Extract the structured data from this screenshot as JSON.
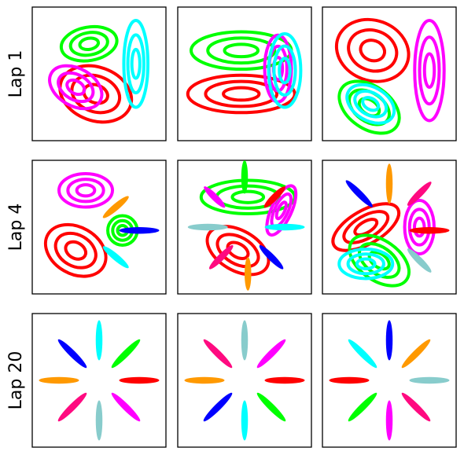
{
  "colors": {
    "red": "#ff0000",
    "green": "#00ff00",
    "magenta": "#ff00ff",
    "cyan": "#00ffff",
    "blue": "#0000ff",
    "orange": "#ff9900",
    "pink": "#ff0a80",
    "teal": "#88cccc"
  },
  "chart_data": {
    "type": "scatter",
    "layout": {
      "rows": 3,
      "cols": 3
    },
    "row_labels": [
      "Lap 1",
      "Lap 4",
      "Lap 20"
    ],
    "axes": {
      "xlim": [
        -1,
        1
      ],
      "ylim": [
        -1,
        1
      ],
      "ticks": false,
      "grid": false
    },
    "panels": [
      {
        "row": 0,
        "col": 0,
        "clusters": [
          {
            "color": "red",
            "cx": -0.05,
            "cy": -0.3,
            "rx": 0.55,
            "ry": 0.4,
            "angle": -20,
            "rings": 3
          },
          {
            "color": "magenta",
            "cx": -0.35,
            "cy": -0.2,
            "rx": 0.42,
            "ry": 0.28,
            "angle": -30,
            "rings": 3
          },
          {
            "color": "green",
            "cx": -0.15,
            "cy": 0.45,
            "rx": 0.42,
            "ry": 0.25,
            "angle": 10,
            "rings": 3
          },
          {
            "color": "cyan",
            "cx": 0.55,
            "cy": 0.15,
            "rx": 0.18,
            "ry": 0.65,
            "angle": 0,
            "rings": 3
          }
        ]
      },
      {
        "row": 0,
        "col": 1,
        "clusters": [
          {
            "color": "green",
            "cx": -0.05,
            "cy": 0.35,
            "rx": 0.75,
            "ry": 0.28,
            "angle": 0,
            "rings": 3
          },
          {
            "color": "red",
            "cx": -0.05,
            "cy": -0.3,
            "rx": 0.8,
            "ry": 0.28,
            "angle": 0,
            "rings": 3
          },
          {
            "color": "magenta",
            "cx": 0.5,
            "cy": 0.08,
            "rx": 0.2,
            "ry": 0.5,
            "angle": 0,
            "rings": 3
          },
          {
            "color": "cyan",
            "cx": 0.6,
            "cy": 0.05,
            "rx": 0.24,
            "ry": 0.55,
            "angle": 0,
            "rings": 3
          }
        ]
      },
      {
        "row": 0,
        "col": 2,
        "clusters": [
          {
            "color": "red",
            "cx": -0.25,
            "cy": 0.35,
            "rx": 0.55,
            "ry": 0.45,
            "angle": -20,
            "rings": 3
          },
          {
            "color": "magenta",
            "cx": 0.6,
            "cy": 0.05,
            "rx": 0.22,
            "ry": 0.75,
            "angle": 0,
            "rings": 3
          },
          {
            "color": "green",
            "cx": -0.3,
            "cy": -0.5,
            "rx": 0.5,
            "ry": 0.32,
            "angle": -35,
            "rings": 3
          },
          {
            "color": "cyan",
            "cx": -0.28,
            "cy": -0.45,
            "rx": 0.38,
            "ry": 0.25,
            "angle": -30,
            "rings": 3
          }
        ]
      },
      {
        "row": 1,
        "col": 0,
        "clusters": [
          {
            "color": "magenta",
            "cx": -0.2,
            "cy": 0.55,
            "rx": 0.4,
            "ry": 0.25,
            "angle": 0,
            "rings": 3
          },
          {
            "color": "red",
            "cx": -0.35,
            "cy": -0.35,
            "rx": 0.48,
            "ry": 0.35,
            "angle": -30,
            "rings": 3
          },
          {
            "color": "green",
            "cx": 0.35,
            "cy": -0.05,
            "rx": 0.22,
            "ry": 0.22,
            "angle": 0,
            "rings": 3
          },
          {
            "color": "orange",
            "cx": 0.25,
            "cy": 0.3,
            "rx": 0.25,
            "ry": 0.05,
            "angle": 40,
            "rings": 1
          },
          {
            "color": "blue",
            "cx": 0.6,
            "cy": -0.05,
            "rx": 0.3,
            "ry": 0.05,
            "angle": 0,
            "rings": 1
          },
          {
            "color": "cyan",
            "cx": 0.25,
            "cy": -0.45,
            "rx": 0.25,
            "ry": 0.05,
            "angle": -40,
            "rings": 1
          }
        ]
      },
      {
        "row": 1,
        "col": 1,
        "clusters": [
          {
            "color": "green",
            "cx": 0.05,
            "cy": 0.45,
            "rx": 0.7,
            "ry": 0.25,
            "angle": 0,
            "rings": 3
          },
          {
            "color": "red",
            "cx": -0.1,
            "cy": -0.35,
            "rx": 0.5,
            "ry": 0.3,
            "angle": -30,
            "rings": 3
          },
          {
            "color": "magenta",
            "cx": 0.55,
            "cy": 0.25,
            "rx": 0.15,
            "ry": 0.4,
            "angle": -25,
            "rings": 3
          },
          {
            "color": "green",
            "cx": 0.0,
            "cy": 0.75,
            "rx": 0.25,
            "ry": 0.05,
            "angle": 90,
            "rings": 1
          },
          {
            "color": "magenta",
            "cx": -0.45,
            "cy": 0.45,
            "rx": 0.22,
            "ry": 0.05,
            "angle": -45,
            "rings": 1
          },
          {
            "color": "red",
            "cx": 0.45,
            "cy": 0.45,
            "rx": 0.22,
            "ry": 0.05,
            "angle": 45,
            "rings": 1
          },
          {
            "color": "teal",
            "cx": -0.55,
            "cy": 0.0,
            "rx": 0.3,
            "ry": 0.05,
            "angle": 0,
            "rings": 1
          },
          {
            "color": "cyan",
            "cx": 0.6,
            "cy": 0.0,
            "rx": 0.3,
            "ry": 0.05,
            "angle": 0,
            "rings": 1
          },
          {
            "color": "pink",
            "cx": -0.35,
            "cy": -0.45,
            "rx": 0.25,
            "ry": 0.05,
            "angle": 45,
            "rings": 1
          },
          {
            "color": "blue",
            "cx": 0.4,
            "cy": -0.45,
            "rx": 0.25,
            "ry": 0.05,
            "angle": -45,
            "rings": 1
          },
          {
            "color": "orange",
            "cx": 0.05,
            "cy": -0.7,
            "rx": 0.25,
            "ry": 0.05,
            "angle": 90,
            "rings": 1
          }
        ]
      },
      {
        "row": 1,
        "col": 2,
        "clusters": [
          {
            "color": "red",
            "cx": -0.35,
            "cy": 0.0,
            "rx": 0.55,
            "ry": 0.25,
            "angle": 30,
            "rings": 3
          },
          {
            "color": "green",
            "cx": -0.15,
            "cy": -0.5,
            "rx": 0.5,
            "ry": 0.3,
            "angle": -35,
            "rings": 3
          },
          {
            "color": "cyan",
            "cx": -0.35,
            "cy": -0.55,
            "rx": 0.4,
            "ry": 0.22,
            "angle": 0,
            "rings": 3
          },
          {
            "color": "magenta",
            "cx": 0.45,
            "cy": 0.0,
            "rx": 0.22,
            "ry": 0.4,
            "angle": 0,
            "rings": 3
          },
          {
            "color": "blue",
            "cx": -0.45,
            "cy": 0.5,
            "rx": 0.28,
            "ry": 0.05,
            "angle": -45,
            "rings": 1
          },
          {
            "color": "orange",
            "cx": 0.0,
            "cy": 0.65,
            "rx": 0.3,
            "ry": 0.05,
            "angle": 90,
            "rings": 1
          },
          {
            "color": "pink",
            "cx": 0.45,
            "cy": 0.5,
            "rx": 0.25,
            "ry": 0.05,
            "angle": 45,
            "rings": 1
          },
          {
            "color": "red",
            "cx": 0.6,
            "cy": -0.05,
            "rx": 0.3,
            "ry": 0.05,
            "angle": 0,
            "rings": 1
          },
          {
            "color": "teal",
            "cx": 0.45,
            "cy": -0.5,
            "rx": 0.25,
            "ry": 0.05,
            "angle": -45,
            "rings": 1
          }
        ]
      },
      {
        "row": 2,
        "col": 0,
        "clusters": [
          {
            "color": "cyan",
            "cx": 0.0,
            "cy": 0.6,
            "rx": 0.3,
            "ry": 0.05,
            "angle": 90,
            "rings": 1
          },
          {
            "color": "green",
            "cx": 0.4,
            "cy": 0.4,
            "rx": 0.3,
            "ry": 0.05,
            "angle": 45,
            "rings": 1
          },
          {
            "color": "red",
            "cx": 0.6,
            "cy": 0.0,
            "rx": 0.3,
            "ry": 0.05,
            "angle": 0,
            "rings": 1
          },
          {
            "color": "magenta",
            "cx": 0.4,
            "cy": -0.4,
            "rx": 0.3,
            "ry": 0.05,
            "angle": -45,
            "rings": 1
          },
          {
            "color": "teal",
            "cx": 0.0,
            "cy": -0.6,
            "rx": 0.3,
            "ry": 0.05,
            "angle": 90,
            "rings": 1
          },
          {
            "color": "pink",
            "cx": -0.4,
            "cy": -0.4,
            "rx": 0.3,
            "ry": 0.05,
            "angle": 45,
            "rings": 1
          },
          {
            "color": "orange",
            "cx": -0.6,
            "cy": 0.0,
            "rx": 0.3,
            "ry": 0.05,
            "angle": 0,
            "rings": 1
          },
          {
            "color": "blue",
            "cx": -0.4,
            "cy": 0.4,
            "rx": 0.3,
            "ry": 0.05,
            "angle": -45,
            "rings": 1
          }
        ]
      },
      {
        "row": 2,
        "col": 1,
        "clusters": [
          {
            "color": "teal",
            "cx": 0.0,
            "cy": 0.6,
            "rx": 0.3,
            "ry": 0.05,
            "angle": 90,
            "rings": 1
          },
          {
            "color": "magenta",
            "cx": 0.4,
            "cy": 0.4,
            "rx": 0.3,
            "ry": 0.05,
            "angle": 45,
            "rings": 1
          },
          {
            "color": "red",
            "cx": 0.6,
            "cy": 0.0,
            "rx": 0.3,
            "ry": 0.05,
            "angle": 0,
            "rings": 1
          },
          {
            "color": "green",
            "cx": 0.4,
            "cy": -0.4,
            "rx": 0.3,
            "ry": 0.05,
            "angle": -45,
            "rings": 1
          },
          {
            "color": "cyan",
            "cx": 0.0,
            "cy": -0.6,
            "rx": 0.3,
            "ry": 0.05,
            "angle": 90,
            "rings": 1
          },
          {
            "color": "blue",
            "cx": -0.4,
            "cy": -0.4,
            "rx": 0.3,
            "ry": 0.05,
            "angle": 45,
            "rings": 1
          },
          {
            "color": "orange",
            "cx": -0.6,
            "cy": 0.0,
            "rx": 0.3,
            "ry": 0.05,
            "angle": 0,
            "rings": 1
          },
          {
            "color": "pink",
            "cx": -0.4,
            "cy": 0.4,
            "rx": 0.3,
            "ry": 0.05,
            "angle": -45,
            "rings": 1
          }
        ]
      },
      {
        "row": 2,
        "col": 2,
        "clusters": [
          {
            "color": "blue",
            "cx": 0.0,
            "cy": 0.6,
            "rx": 0.3,
            "ry": 0.05,
            "angle": 90,
            "rings": 1
          },
          {
            "color": "orange",
            "cx": 0.4,
            "cy": 0.4,
            "rx": 0.3,
            "ry": 0.05,
            "angle": 45,
            "rings": 1
          },
          {
            "color": "teal",
            "cx": 0.6,
            "cy": 0.0,
            "rx": 0.3,
            "ry": 0.05,
            "angle": 0,
            "rings": 1
          },
          {
            "color": "pink",
            "cx": 0.4,
            "cy": -0.4,
            "rx": 0.3,
            "ry": 0.05,
            "angle": -45,
            "rings": 1
          },
          {
            "color": "magenta",
            "cx": 0.0,
            "cy": -0.6,
            "rx": 0.3,
            "ry": 0.05,
            "angle": 90,
            "rings": 1
          },
          {
            "color": "green",
            "cx": -0.4,
            "cy": -0.4,
            "rx": 0.3,
            "ry": 0.05,
            "angle": 45,
            "rings": 1
          },
          {
            "color": "red",
            "cx": -0.6,
            "cy": 0.0,
            "rx": 0.3,
            "ry": 0.05,
            "angle": 0,
            "rings": 1
          },
          {
            "color": "cyan",
            "cx": -0.4,
            "cy": 0.4,
            "rx": 0.3,
            "ry": 0.05,
            "angle": -45,
            "rings": 1
          }
        ]
      }
    ]
  }
}
